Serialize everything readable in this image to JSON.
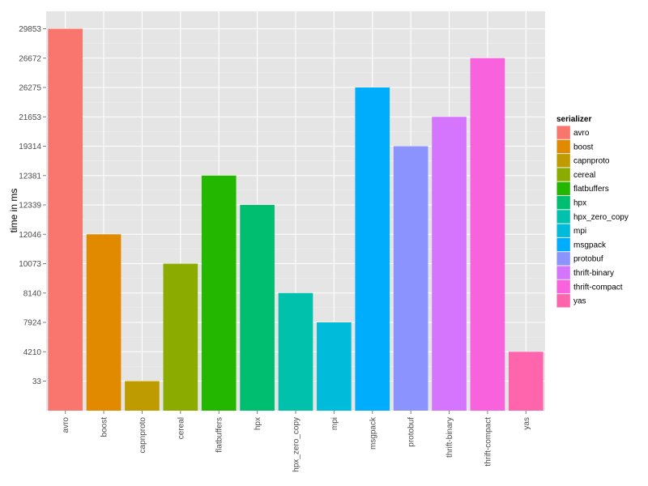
{
  "chart_data": {
    "type": "bar",
    "ylabel": "time in ms",
    "xlabel": "",
    "y_axis_note": "y axis is categorical: tick labels are the ordered distinct values",
    "y_ticks": [
      "33",
      "4210",
      "7924",
      "8140",
      "10073",
      "12046",
      "12339",
      "12381",
      "19314",
      "21653",
      "26275",
      "26672",
      "29853"
    ],
    "categories": [
      "avro",
      "boost",
      "capnproto",
      "cereal",
      "flatbuffers",
      "hpx",
      "hpx_zero_copy",
      "mpi",
      "msgpack",
      "protobuf",
      "thrift-binary",
      "thrift-compact",
      "yas"
    ],
    "values": [
      "29853",
      "12046",
      "33",
      "10073",
      "12381",
      "12339",
      "8140",
      "7924",
      "26275",
      "19314",
      "21653",
      "26672",
      "4210"
    ],
    "colors": [
      "#F8766D",
      "#E18A00",
      "#BE9C00",
      "#8CAB00",
      "#24B700",
      "#00BE70",
      "#00C1AB",
      "#00BBDA",
      "#00ACFC",
      "#8B93FF",
      "#D575FE",
      "#F962DD",
      "#FF65AC"
    ],
    "legend": {
      "title": "serializer",
      "placement": "right",
      "entries": [
        "avro",
        "boost",
        "capnproto",
        "cereal",
        "flatbuffers",
        "hpx",
        "hpx_zero_copy",
        "mpi",
        "msgpack",
        "protobuf",
        "thrift-binary",
        "thrift-compact",
        "yas"
      ]
    },
    "grid": true,
    "panel_background": "#E5E5E5",
    "grid_color": "#FFFFFF"
  }
}
